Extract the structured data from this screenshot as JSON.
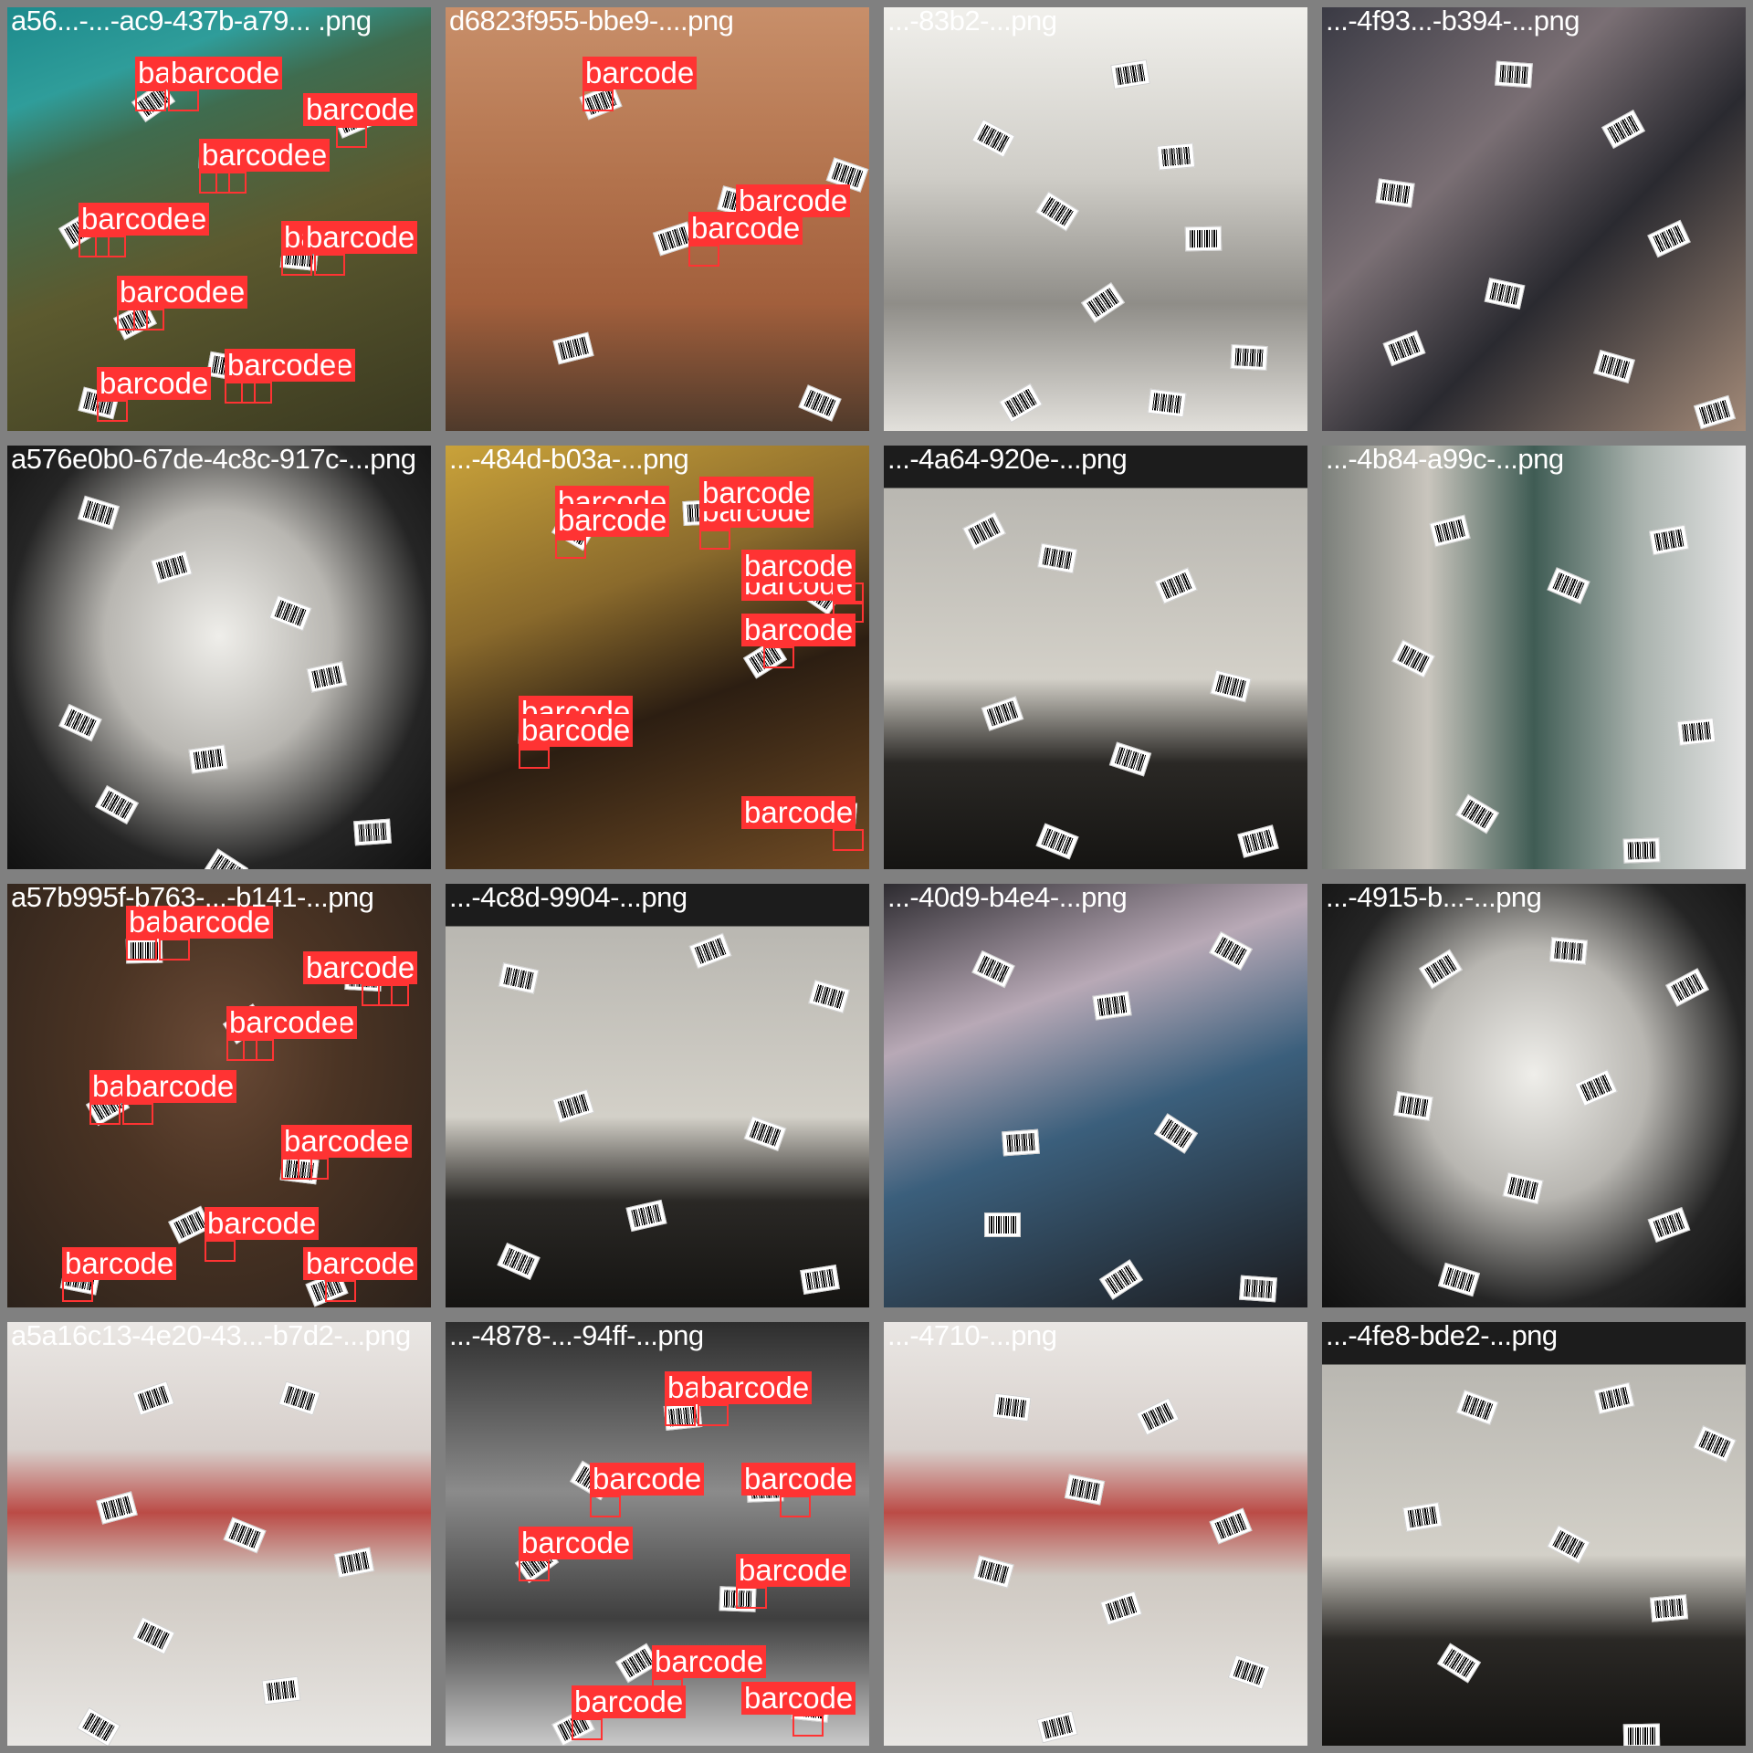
{
  "accent_color": "#ff3333",
  "tiles": [
    {
      "label": "a56...-...-ac9-437b-a79... .png",
      "scene": "scene-aerial",
      "detections": 14
    },
    {
      "label": "d6823f955-bbe9-....png",
      "scene": "scene-brick",
      "detections": 3
    },
    {
      "label": "...-83b2-...png",
      "scene": "scene-sign",
      "detections": 0
    },
    {
      "label": "...-4f93...-b394-...png",
      "scene": "scene-records",
      "detections": 0
    },
    {
      "label": "a576e0b0-67de-4c8c-917c-...png",
      "scene": "scene-album",
      "detections": 0
    },
    {
      "label": "...-484d-b03a-...png",
      "scene": "scene-forklift",
      "detections": 10
    },
    {
      "label": "...-4a64-920e-...png",
      "scene": "scene-bwwin",
      "detections": 0
    },
    {
      "label": "...-4b84-a99c-...png",
      "scene": "scene-xmas",
      "detections": 0
    },
    {
      "label": "a57b995f-b763-...-b141-...png",
      "scene": "scene-dog",
      "detections": 13
    },
    {
      "label": "...-4c8d-9904-...png",
      "scene": "scene-bwwin",
      "detections": 0
    },
    {
      "label": "...-40d9-b4e4-...png",
      "scene": "scene-vinyl",
      "detections": 0
    },
    {
      "label": "...-4915-b...-...png",
      "scene": "scene-album",
      "detections": 0
    },
    {
      "label": "a5a16c13-4e20-43...-b7d2-...png",
      "scene": "scene-street",
      "detections": 0
    },
    {
      "label": "...-4878-...-94ff-...png",
      "scene": "scene-bike",
      "detections": 9
    },
    {
      "label": "...-4710-...png",
      "scene": "scene-street",
      "detections": 0
    },
    {
      "label": "...-4fe8-bde2-...png",
      "scene": "scene-bwwin",
      "detections": 0
    }
  ],
  "detection_label": "barcode"
}
